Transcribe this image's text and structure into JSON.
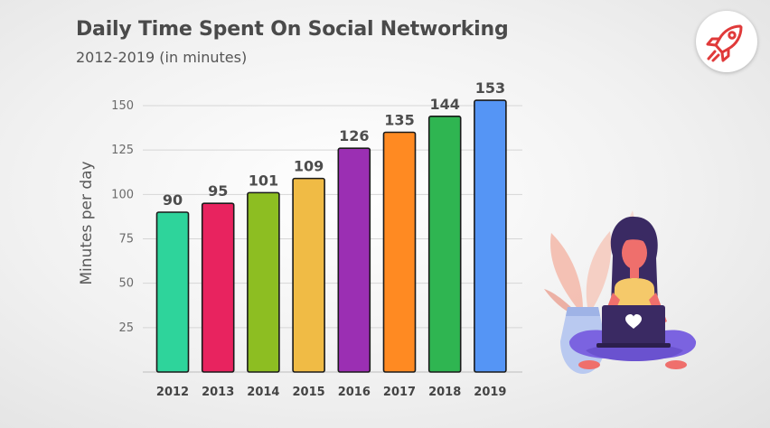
{
  "header": {
    "title": "Daily Time Spent On Social Networking",
    "subtitle": "2012-2019 (in minutes)"
  },
  "icons": {
    "badge": "rocket-icon",
    "illustration": "woman-with-laptop-illustration"
  },
  "chart_data": {
    "type": "bar",
    "title": "Daily Time Spent On Social Networking",
    "subtitle": "2012-2019 (in minutes)",
    "xlabel": "",
    "ylabel": "Minutes per day",
    "categories": [
      "2012",
      "2013",
      "2014",
      "2015",
      "2016",
      "2017",
      "2018",
      "2019"
    ],
    "values": [
      90,
      95,
      101,
      109,
      126,
      135,
      144,
      153
    ],
    "data_labels": [
      "90",
      "95",
      "101",
      "109",
      "126",
      "135",
      "144",
      "153"
    ],
    "colors": [
      "#2ed49b",
      "#e8235f",
      "#8dbe22",
      "#f0bb45",
      "#9b2fb3",
      "#ff8a22",
      "#2fb551",
      "#5595f5"
    ],
    "yticks": [
      "25",
      "50",
      "75",
      "100",
      "125",
      "150"
    ],
    "ylim": [
      0,
      155
    ],
    "grid": true,
    "legend": "none"
  }
}
